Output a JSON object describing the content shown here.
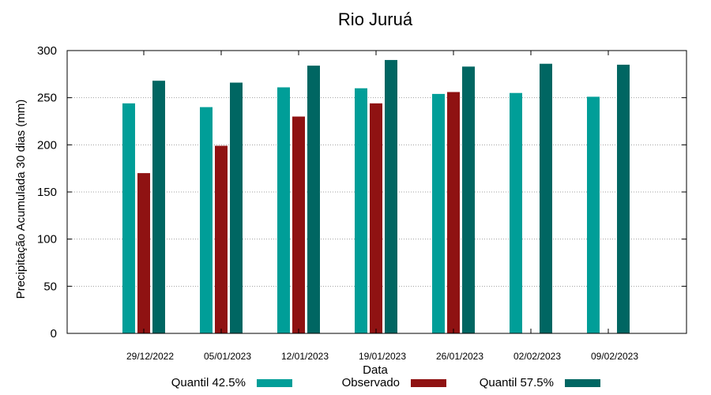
{
  "chart_data": {
    "type": "bar",
    "title": "Rio Juruá",
    "xlabel": "Data",
    "ylabel": "Precipitação Acumulada 30 dias (mm)",
    "ylim": [
      0,
      300
    ],
    "yticks": [
      0,
      50,
      100,
      150,
      200,
      250,
      300
    ],
    "grid": true,
    "legend_position": "bottom",
    "categories": [
      "29/12/2022",
      "05/01/2023",
      "12/01/2023",
      "19/01/2023",
      "26/01/2023",
      "02/02/2023",
      "09/02/2023"
    ],
    "series": [
      {
        "name": "Quantil 42.5%",
        "color": "#009e98",
        "values": [
          244,
          240,
          261,
          260,
          254,
          255,
          251
        ]
      },
      {
        "name": "Observado",
        "color": "#8f1212",
        "values": [
          170,
          199,
          230,
          244,
          256,
          null,
          null
        ]
      },
      {
        "name": "Quantil 57.5%",
        "color": "#006662",
        "values": [
          268,
          266,
          284,
          290,
          283,
          286,
          285
        ]
      }
    ]
  }
}
